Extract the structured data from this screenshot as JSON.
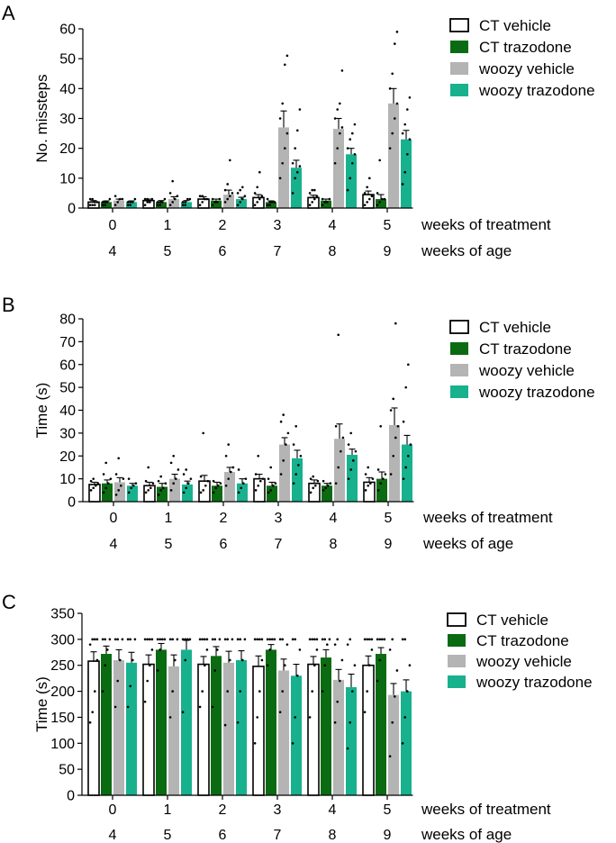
{
  "legend": {
    "groups": [
      "CT vehicle",
      "CT trazodone",
      "woozy vehicle",
      "woozy trazodone"
    ],
    "colors": [
      "#ffffff",
      "#0b6b12",
      "#b4b4b4",
      "#17b18e"
    ],
    "stroke": "#000000"
  },
  "chart_data": [
    {
      "type": "bar",
      "panel": "A",
      "ylabel": "No. missteps",
      "ylim": [
        0,
        60
      ],
      "yticks": [
        0,
        10,
        20,
        30,
        40,
        50,
        60
      ],
      "categories": [
        "0",
        "1",
        "2",
        "3",
        "4",
        "5"
      ],
      "second_categories": [
        "4",
        "5",
        "6",
        "7",
        "8",
        "9"
      ],
      "xlabel": "weeks of treatment",
      "second_xlabel": "weeks of age",
      "series": [
        {
          "name": "CT vehicle",
          "values": [
            2,
            2.5,
            3,
            3.5,
            3.5,
            4.5
          ],
          "sem": [
            0.5,
            0.5,
            0.8,
            1,
            0.8,
            1.2
          ],
          "points": [
            [
              1,
              1,
              2,
              2,
              3,
              3,
              1
            ],
            [
              1,
              2,
              2,
              3,
              3,
              3,
              2
            ],
            [
              1,
              2,
              3,
              3,
              4,
              4,
              3
            ],
            [
              1,
              2,
              3,
              4,
              5,
              7,
              12
            ],
            [
              1,
              2,
              3,
              4,
              5,
              6,
              6
            ],
            [
              1,
              2,
              3,
              4,
              5,
              7,
              10
            ]
          ]
        },
        {
          "name": "CT trazodone",
          "values": [
            2,
            2,
            2.5,
            2,
            2.5,
            3
          ],
          "sem": [
            0.4,
            0.5,
            0.5,
            0.4,
            0.5,
            1.5
          ],
          "points": [
            [
              1,
              2,
              2,
              3,
              2,
              1
            ],
            [
              1,
              2,
              2,
              3,
              2,
              1
            ],
            [
              1,
              2,
              2,
              3,
              3,
              2
            ],
            [
              1,
              1,
              2,
              2,
              3,
              2
            ],
            [
              1,
              2,
              2,
              3,
              3,
              2
            ],
            [
              1,
              2,
              3,
              3,
              5,
              16
            ]
          ]
        },
        {
          "name": "woozy vehicle",
          "values": [
            2.5,
            3,
            4.5,
            27,
            26.5,
            35
          ],
          "sem": [
            0.5,
            0.8,
            1.5,
            5.5,
            3.5,
            5
          ],
          "points": [
            [
              1,
              2,
              3,
              3,
              4
            ],
            [
              1,
              2,
              3,
              4,
              5,
              9
            ],
            [
              2,
              3,
              4,
              5,
              6,
              8,
              16
            ],
            [
              10,
              15,
              20,
              25,
              30,
              35,
              48,
              51
            ],
            [
              15,
              20,
              25,
              27,
              30,
              33,
              35,
              46
            ],
            [
              20,
              25,
              30,
              35,
              40,
              45,
              55,
              59
            ]
          ]
        },
        {
          "name": "woozy trazodone",
          "values": [
            2,
            2,
            3,
            13.5,
            18,
            23
          ],
          "sem": [
            0.4,
            0.5,
            0.6,
            2.5,
            2,
            3
          ],
          "points": [
            [
              1,
              2,
              2,
              3,
              2,
              1
            ],
            [
              1,
              2,
              3,
              3,
              2,
              1
            ],
            [
              1,
              2,
              3,
              4,
              5,
              6,
              7
            ],
            [
              5,
              10,
              12,
              14,
              15,
              20,
              26,
              33
            ],
            [
              6,
              10,
              15,
              18,
              20,
              23,
              25,
              28
            ],
            [
              8,
              12,
              18,
              23,
              25,
              28,
              33,
              37
            ]
          ]
        }
      ]
    },
    {
      "type": "bar",
      "panel": "B",
      "ylabel": "Time (s)",
      "ylim": [
        0,
        80
      ],
      "yticks": [
        0,
        10,
        20,
        30,
        40,
        50,
        60,
        70,
        80
      ],
      "categories": [
        "0",
        "1",
        "2",
        "3",
        "4",
        "5"
      ],
      "second_categories": [
        "4",
        "5",
        "6",
        "7",
        "8",
        "9"
      ],
      "xlabel": "weeks of treatment",
      "second_xlabel": "weeks of age",
      "series": [
        {
          "name": "CT vehicle",
          "values": [
            7.5,
            7,
            9,
            10,
            8,
            8.5
          ],
          "sem": [
            1,
            1.5,
            2.5,
            2,
            1.5,
            2
          ],
          "points": [
            [
              5,
              6,
              7,
              8,
              9,
              10
            ],
            [
              4,
              5,
              6,
              8,
              9,
              15
            ],
            [
              4,
              5,
              7,
              9,
              11,
              30
            ],
            [
              5,
              7,
              9,
              10,
              12,
              20
            ],
            [
              4,
              6,
              7,
              9,
              10,
              11
            ],
            [
              5,
              7,
              8,
              10,
              12,
              15
            ]
          ]
        },
        {
          "name": "CT trazodone",
          "values": [
            8,
            6.5,
            7,
            7,
            7,
            10
          ],
          "sem": [
            1.5,
            1.5,
            1.5,
            1.5,
            1,
            3
          ],
          "points": [
            [
              4,
              6,
              8,
              10,
              12,
              17
            ],
            [
              3,
              5,
              6,
              8,
              9,
              11
            ],
            [
              4,
              6,
              7,
              8,
              9
            ],
            [
              4,
              5,
              7,
              8,
              10,
              15
            ],
            [
              5,
              6,
              7,
              8,
              9
            ],
            [
              5,
              8,
              10,
              12,
              14,
              33
            ]
          ]
        },
        {
          "name": "woozy vehicle",
          "values": [
            8.5,
            10,
            13,
            25,
            27.5,
            33.5
          ],
          "sem": [
            2,
            2,
            2,
            3,
            6.5,
            7.5
          ],
          "points": [
            [
              3,
              5,
              7,
              10,
              12,
              19
            ],
            [
              5,
              8,
              10,
              14,
              17,
              20
            ],
            [
              7,
              10,
              13,
              15,
              20,
              25
            ],
            [
              12,
              18,
              25,
              30,
              35,
              38
            ],
            [
              8,
              15,
              22,
              28,
              33,
              73
            ],
            [
              12,
              20,
              28,
              33,
              40,
              45,
              78
            ]
          ]
        },
        {
          "name": "woozy trazodone",
          "values": [
            7,
            7.5,
            8,
            19,
            20.5,
            25
          ],
          "sem": [
            1,
            1.5,
            2,
            3.5,
            2.5,
            4
          ],
          "points": [
            [
              4,
              6,
              7,
              8,
              10
            ],
            [
              4,
              6,
              8,
              10,
              12,
              14
            ],
            [
              4,
              6,
              8,
              10,
              14
            ],
            [
              8,
              12,
              16,
              20,
              25,
              33
            ],
            [
              10,
              14,
              18,
              22,
              25,
              30
            ],
            [
              10,
              15,
              20,
              25,
              35,
              50,
              60
            ]
          ]
        }
      ]
    },
    {
      "type": "bar",
      "panel": "C",
      "ylabel": "Time (s)",
      "ylim": [
        0,
        350
      ],
      "yticks": [
        0,
        50,
        100,
        150,
        200,
        250,
        300,
        350
      ],
      "categories": [
        "0",
        "1",
        "2",
        "3",
        "4",
        "5"
      ],
      "second_categories": [
        "4",
        "5",
        "6",
        "7",
        "8",
        "9"
      ],
      "xlabel": "weeks of treatment",
      "second_xlabel": "weeks of age",
      "series": [
        {
          "name": "CT vehicle",
          "values": [
            258,
            252,
            252,
            248,
            252,
            250
          ],
          "sem": [
            18,
            18,
            15,
            20,
            15,
            18
          ],
          "points": [
            [
              140,
              160,
              200,
              260,
              290,
              300,
              300,
              300
            ],
            [
              180,
              220,
              250,
              280,
              300,
              300,
              300,
              300
            ],
            [
              170,
              200,
              250,
              280,
              300,
              300,
              300,
              300
            ],
            [
              100,
              150,
              200,
              260,
              300,
              300,
              300,
              300
            ],
            [
              150,
              200,
              250,
              280,
              300,
              300,
              300,
              300
            ],
            [
              160,
              200,
              250,
              280,
              300,
              300,
              300,
              300
            ]
          ]
        },
        {
          "name": "CT trazodone",
          "values": [
            272,
            280,
            268,
            280,
            265,
            272
          ],
          "sem": [
            15,
            12,
            18,
            10,
            15,
            12
          ],
          "points": [
            [
              200,
              250,
              280,
              300,
              300,
              300
            ],
            [
              240,
              280,
              300,
              300,
              300,
              300
            ],
            [
              170,
              240,
              280,
              300,
              300,
              300
            ],
            [
              250,
              280,
              300,
              300,
              300,
              300
            ],
            [
              200,
              250,
              290,
              300,
              300,
              300
            ],
            [
              220,
              260,
              300,
              300,
              300,
              300
            ]
          ]
        },
        {
          "name": "woozy vehicle",
          "values": [
            260,
            248,
            255,
            240,
            222,
            193
          ],
          "sem": [
            20,
            22,
            22,
            22,
            20,
            22
          ],
          "points": [
            [
              170,
              220,
              260,
              300,
              300,
              300
            ],
            [
              150,
              200,
              260,
              300,
              300,
              300
            ],
            [
              135,
              200,
              260,
              300,
              300,
              300
            ],
            [
              160,
              200,
              250,
              290,
              300,
              300
            ],
            [
              140,
              180,
              220,
              260,
              290,
              300
            ],
            [
              75,
              140,
              190,
              240,
              280,
              300
            ]
          ]
        },
        {
          "name": "woozy trazodone",
          "values": [
            255,
            280,
            260,
            230,
            208,
            200
          ],
          "sem": [
            20,
            18,
            18,
            22,
            25,
            22
          ],
          "points": [
            [
              170,
              210,
              260,
              300,
              300,
              300
            ],
            [
              160,
              260,
              300,
              300,
              300,
              300
            ],
            [
              140,
              200,
              260,
              300,
              300,
              300
            ],
            [
              100,
              150,
              230,
              280,
              300,
              300
            ],
            [
              90,
              140,
              200,
              250,
              290,
              300
            ],
            [
              100,
              150,
              200,
              250,
              300,
              300
            ]
          ]
        }
      ]
    }
  ]
}
